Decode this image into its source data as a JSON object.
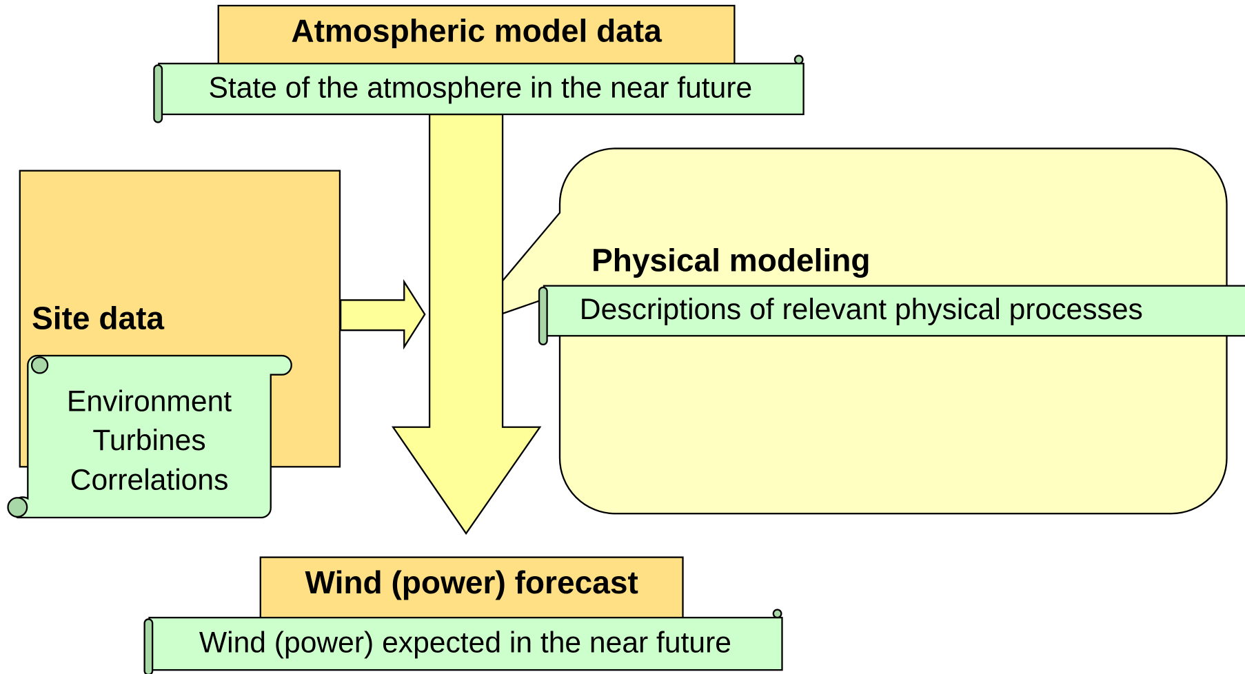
{
  "nodes": [
    {
      "title": "Atmospheric model data",
      "description": "State of the atmosphere in the near future"
    },
    {
      "title": "Site data",
      "description": [
        "Environment",
        "Turbines",
        "Correlations"
      ]
    },
    {
      "title": "Physical modeling",
      "description": "Descriptions of relevant physical processes"
    },
    {
      "title": "Wind (power) forecast",
      "description": "Wind (power) expected in the near future"
    }
  ]
}
